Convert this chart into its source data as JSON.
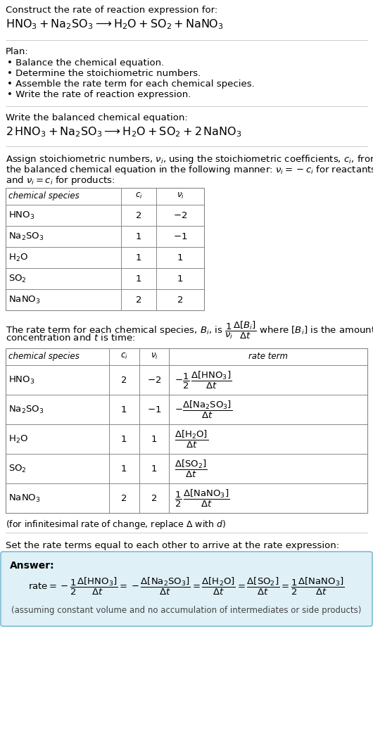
{
  "bg_color": "#ffffff",
  "title_line1": "Construct the rate of reaction expression for:",
  "title_line2_latex": "$\\mathrm{HNO_3 + Na_2SO_3 \\longrightarrow H_2O + SO_2 + NaNO_3}$",
  "plan_header": "Plan:",
  "plan_items": [
    "• Balance the chemical equation.",
    "• Determine the stoichiometric numbers.",
    "• Assemble the rate term for each chemical species.",
    "• Write the rate of reaction expression."
  ],
  "balanced_header": "Write the balanced chemical equation:",
  "balanced_eq": "$\\mathrm{2\\,HNO_3 + Na_2SO_3 \\longrightarrow H_2O + SO_2 + 2\\,NaNO_3}$",
  "stoich_lines": [
    "Assign stoichiometric numbers, $\\nu_i$, using the stoichiometric coefficients, $c_i$, from",
    "the balanced chemical equation in the following manner: $\\nu_i = -c_i$ for reactants",
    "and $\\nu_i = c_i$ for products:"
  ],
  "table1_rows": [
    [
      "$\\mathrm{HNO_3}$",
      "2",
      "$-2$"
    ],
    [
      "$\\mathrm{Na_2SO_3}$",
      "1",
      "$-1$"
    ],
    [
      "$\\mathrm{H_2O}$",
      "1",
      "1"
    ],
    [
      "$\\mathrm{SO_2}$",
      "1",
      "1"
    ],
    [
      "$\\mathrm{NaNO_3}$",
      "2",
      "2"
    ]
  ],
  "rate_lines": [
    "The rate term for each chemical species, $B_i$, is $\\dfrac{1}{\\nu_i}\\dfrac{\\Delta[B_i]}{\\Delta t}$ where $[B_i]$ is the amount",
    "concentration and $t$ is time:"
  ],
  "table2_rows": [
    [
      "$\\mathrm{HNO_3}$",
      "2",
      "$-2$",
      "$-\\dfrac{1}{2}\\,\\dfrac{\\Delta[\\mathrm{HNO_3}]}{\\Delta t}$"
    ],
    [
      "$\\mathrm{Na_2SO_3}$",
      "1",
      "$-1$",
      "$-\\dfrac{\\Delta[\\mathrm{Na_2SO_3}]}{\\Delta t}$"
    ],
    [
      "$\\mathrm{H_2O}$",
      "1",
      "1",
      "$\\dfrac{\\Delta[\\mathrm{H_2O}]}{\\Delta t}$"
    ],
    [
      "$\\mathrm{SO_2}$",
      "1",
      "1",
      "$\\dfrac{\\Delta[\\mathrm{SO_2}]}{\\Delta t}$"
    ],
    [
      "$\\mathrm{NaNO_3}$",
      "2",
      "2",
      "$\\dfrac{1}{2}\\,\\dfrac{\\Delta[\\mathrm{NaNO_3}]}{\\Delta t}$"
    ]
  ],
  "infinitesimal_note": "(for infinitesimal rate of change, replace $\\Delta$ with $d$)",
  "set_equal_text": "Set the rate terms equal to each other to arrive at the rate expression:",
  "answer_label": "Answer:",
  "answer_eq": "$\\mathrm{rate} = -\\dfrac{1}{2}\\dfrac{\\Delta[\\mathrm{HNO_3}]}{\\Delta t} = -\\dfrac{\\Delta[\\mathrm{Na_2SO_3}]}{\\Delta t} = \\dfrac{\\Delta[\\mathrm{H_2O}]}{\\Delta t} = \\dfrac{\\Delta[\\mathrm{SO_2}]}{\\Delta t} = \\dfrac{1}{2}\\dfrac{\\Delta[\\mathrm{NaNO_3}]}{\\Delta t}$",
  "answer_note": "(assuming constant volume and no accumulation of intermediates or side products)",
  "section_bg": "#dff0f7",
  "border_color": "#7bbfd4",
  "table_border": "#888888",
  "line_color": "#cccccc"
}
